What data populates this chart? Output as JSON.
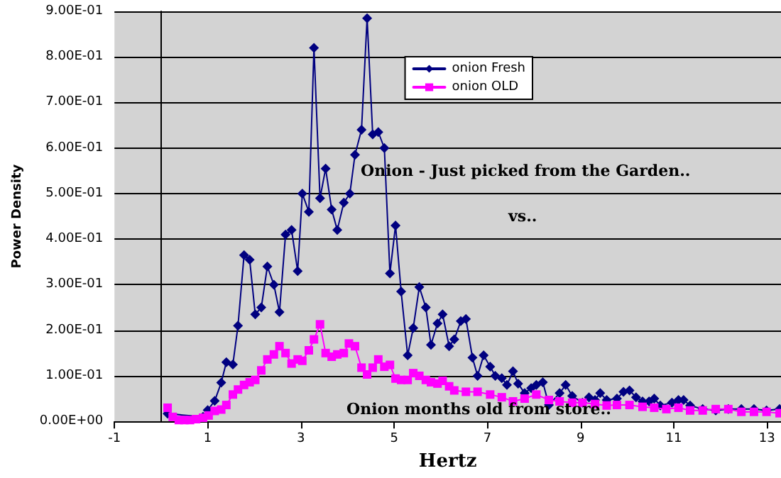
{
  "chart_data": {
    "type": "line",
    "xlabel": "Hertz",
    "ylabel": "Power Density",
    "annotations": [
      "Onion - Just picked from the Garden..",
      "vs..",
      "Onion months old from store.."
    ],
    "xlim": [
      -1,
      13.3
    ],
    "xticks": [
      -1,
      1,
      3,
      5,
      7,
      9,
      11,
      13
    ],
    "ylim": [
      0,
      0.9
    ],
    "yticks": [
      {
        "value": 0,
        "label": "0.00E+00"
      },
      {
        "value": 0.1,
        "label": "1.00E-01"
      },
      {
        "value": 0.2,
        "label": "2.00E-01"
      },
      {
        "value": 0.3,
        "label": "3.00E-01"
      },
      {
        "value": 0.4,
        "label": "4.00E-01"
      },
      {
        "value": 0.5,
        "label": "5.00E-01"
      },
      {
        "value": 0.6,
        "label": "6.00E-01"
      },
      {
        "value": 0.7,
        "label": "7.00E-01"
      },
      {
        "value": 0.8,
        "label": "8.00E-01"
      },
      {
        "value": 0.9,
        "label": "9.00E-01"
      }
    ],
    "grid": "y",
    "legend": "top right",
    "line_style": "solid",
    "series": [
      {
        "name": "onion Fresh",
        "color": "#000080",
        "marker": "diamond",
        "x": [
          0.14,
          0.9,
          1.0,
          1.15,
          1.29,
          1.4,
          1.54,
          1.65,
          1.78,
          1.9,
          2.02,
          2.15,
          2.28,
          2.42,
          2.54,
          2.67,
          2.8,
          2.93,
          3.03,
          3.17,
          3.28,
          3.41,
          3.53,
          3.66,
          3.78,
          3.92,
          4.05,
          4.16,
          4.3,
          4.42,
          4.54,
          4.66,
          4.79,
          4.91,
          5.03,
          5.15,
          5.29,
          5.41,
          5.54,
          5.68,
          5.79,
          5.93,
          6.04,
          6.18,
          6.29,
          6.43,
          6.54,
          6.68,
          6.79,
          6.92,
          7.06,
          7.17,
          7.31,
          7.42,
          7.55,
          7.66,
          7.8,
          7.94,
          8.05,
          8.19,
          8.32,
          8.55,
          8.68,
          8.82,
          9.04,
          9.18,
          9.31,
          9.42,
          9.56,
          9.78,
          9.92,
          10.05,
          10.19,
          10.33,
          10.47,
          10.58,
          10.71,
          10.96,
          11.1,
          11.21,
          11.35,
          11.62,
          11.9,
          12.17,
          12.45,
          12.72,
          12.99,
          13.27
        ],
        "values": [
          0.017,
          0.01,
          0.025,
          0.045,
          0.085,
          0.13,
          0.125,
          0.21,
          0.365,
          0.355,
          0.235,
          0.25,
          0.34,
          0.3,
          0.24,
          0.41,
          0.42,
          0.33,
          0.5,
          0.46,
          0.82,
          0.49,
          0.555,
          0.465,
          0.42,
          0.48,
          0.5,
          0.585,
          0.64,
          0.885,
          0.63,
          0.635,
          0.6,
          0.325,
          0.43,
          0.285,
          0.145,
          0.205,
          0.295,
          0.25,
          0.168,
          0.215,
          0.235,
          0.165,
          0.18,
          0.22,
          0.225,
          0.14,
          0.1,
          0.145,
          0.12,
          0.1,
          0.095,
          0.08,
          0.11,
          0.083,
          0.062,
          0.073,
          0.08,
          0.086,
          0.036,
          0.062,
          0.08,
          0.056,
          0.041,
          0.053,
          0.047,
          0.062,
          0.047,
          0.05,
          0.065,
          0.068,
          0.053,
          0.044,
          0.044,
          0.05,
          0.035,
          0.041,
          0.047,
          0.047,
          0.035,
          0.027,
          0.024,
          0.027,
          0.027,
          0.027,
          0.024,
          0.027
        ]
      },
      {
        "name": "onion OLD",
        "color": "#ff00ff",
        "marker": "square",
        "x": [
          0.14,
          0.25,
          0.38,
          0.5,
          0.62,
          0.75,
          0.9,
          1.02,
          1.15,
          1.29,
          1.4,
          1.54,
          1.65,
          1.78,
          1.9,
          2.02,
          2.15,
          2.28,
          2.42,
          2.54,
          2.67,
          2.8,
          2.93,
          3.03,
          3.17,
          3.28,
          3.41,
          3.53,
          3.66,
          3.78,
          3.92,
          4.03,
          4.16,
          4.3,
          4.42,
          4.54,
          4.66,
          4.79,
          4.91,
          5.03,
          5.15,
          5.29,
          5.41,
          5.54,
          5.68,
          5.79,
          5.93,
          6.04,
          6.18,
          6.29,
          6.54,
          6.79,
          7.06,
          7.31,
          7.55,
          7.8,
          8.05,
          8.32,
          8.55,
          8.82,
          9.04,
          9.31,
          9.56,
          9.78,
          10.05,
          10.33,
          10.58,
          10.84,
          11.1,
          11.35,
          11.62,
          11.9,
          12.17,
          12.45,
          12.72,
          12.99,
          13.27
        ],
        "values": [
          0.03,
          0.01,
          0.003,
          0.003,
          0.003,
          0.005,
          0.008,
          0.013,
          0.023,
          0.026,
          0.036,
          0.059,
          0.07,
          0.08,
          0.086,
          0.091,
          0.112,
          0.136,
          0.147,
          0.165,
          0.15,
          0.127,
          0.136,
          0.133,
          0.156,
          0.18,
          0.213,
          0.15,
          0.142,
          0.147,
          0.15,
          0.171,
          0.165,
          0.118,
          0.103,
          0.118,
          0.136,
          0.12,
          0.124,
          0.094,
          0.091,
          0.091,
          0.106,
          0.1,
          0.091,
          0.086,
          0.083,
          0.089,
          0.077,
          0.068,
          0.065,
          0.065,
          0.059,
          0.053,
          0.044,
          0.05,
          0.059,
          0.047,
          0.044,
          0.041,
          0.041,
          0.038,
          0.035,
          0.036,
          0.036,
          0.032,
          0.03,
          0.027,
          0.03,
          0.024,
          0.024,
          0.027,
          0.027,
          0.021,
          0.021,
          0.021,
          0.018
        ]
      }
    ]
  }
}
